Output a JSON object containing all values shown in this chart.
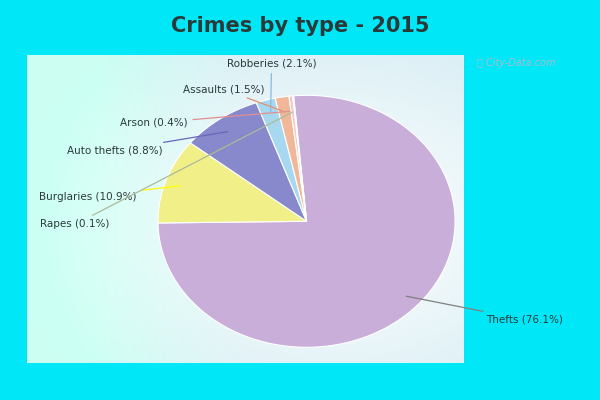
{
  "title": "Crimes by type - 2015",
  "labels": [
    "Thefts",
    "Burglaries",
    "Auto thefts",
    "Robberies",
    "Assaults",
    "Arson",
    "Rapes"
  ],
  "values": [
    76.1,
    10.9,
    8.8,
    2.1,
    1.5,
    0.4,
    0.1
  ],
  "colors": [
    "#c8aed8",
    "#f0ef88",
    "#8888cc",
    "#a8d8f0",
    "#f0b898",
    "#f4c8c8",
    "#c8aed8"
  ],
  "label_texts": [
    "Thefts (76.1%)",
    "Burglaries (10.9%)",
    "Auto thefts (8.8%)",
    "Robberies (2.1%)",
    "Assaults (1.5%)",
    "Arson (0.4%)",
    "Rapes (0.1%)"
  ],
  "border_color": "#00e8f8",
  "title_color": "#2a3a3a",
  "title_fontsize": 15,
  "border_width": 8
}
